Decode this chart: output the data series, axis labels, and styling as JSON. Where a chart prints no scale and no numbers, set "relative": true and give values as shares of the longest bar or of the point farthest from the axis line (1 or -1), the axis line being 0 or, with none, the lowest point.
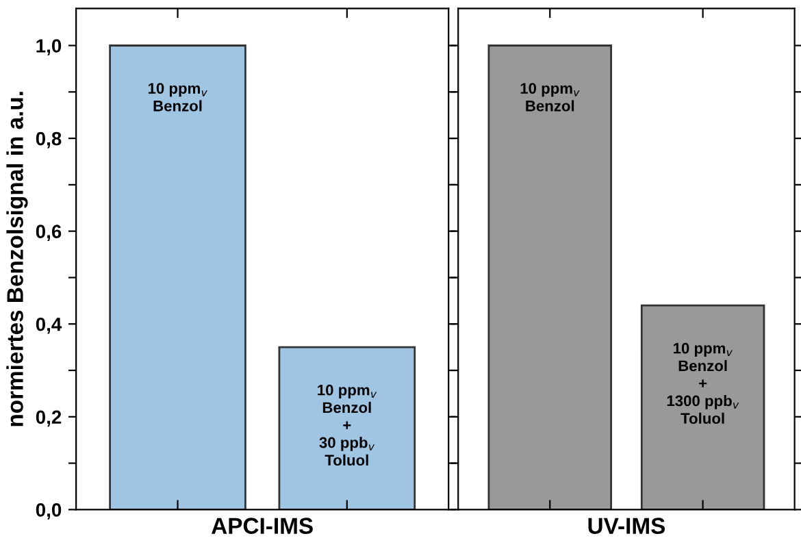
{
  "chart_data": [
    {
      "type": "bar",
      "categories": [
        null,
        null
      ],
      "values": [
        1.0,
        0.35
      ],
      "color": "#9fc5e3",
      "xlabel": "APCI-IMS",
      "ylabel": "normiertes Benzolsignal in a.u.",
      "ylim": [
        0,
        1.08
      ],
      "yticks": [
        {
          "value": 0,
          "label": "0,0"
        },
        {
          "value": 0.1,
          "label": null
        },
        {
          "value": 0.2,
          "label": "0,2"
        },
        {
          "value": 0.3,
          "label": null
        },
        {
          "value": 0.4,
          "label": "0,4"
        },
        {
          "value": 0.5,
          "label": null
        },
        {
          "value": 0.6,
          "label": "0,6"
        },
        {
          "value": 0.7,
          "label": null
        },
        {
          "value": 0.8,
          "label": "0,8"
        },
        {
          "value": 0.9,
          "label": null
        },
        {
          "value": 1.0,
          "label": "1,0"
        }
      ],
      "tick_labels": "y",
      "grid": false,
      "annotations": [
        "10 ppm$_{v}$\nBenzol",
        "10 ppm$_{v}$\nBenzol\n+\n30 ppb$_{v}$\nToluol"
      ]
    },
    {
      "type": "bar",
      "categories": [
        null,
        null
      ],
      "values": [
        1.0,
        0.44
      ],
      "relative": true,
      "color": "#999999",
      "xlabel": "UV-IMS",
      "tick_labels": false,
      "grid": false,
      "annotations": [
        "10 ppm$_{v}$\nBenzol",
        "10 ppm$_{v}$\nBenzol\n+\n1300 ppb$_{v}$\nToluol"
      ]
    }
  ]
}
